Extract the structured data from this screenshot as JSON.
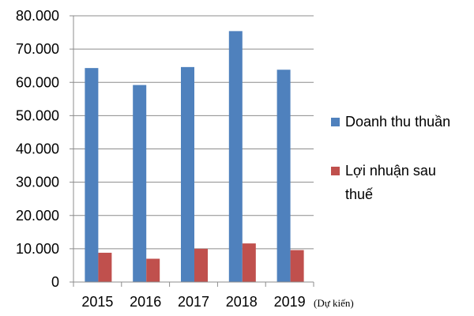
{
  "chart_data": {
    "type": "bar",
    "categories": [
      "2015",
      "2016",
      "2017",
      "2018",
      "2019"
    ],
    "category_note": "(Dự kiến)",
    "series": [
      {
        "name": "Doanh thu thuần",
        "values": [
          64300,
          59200,
          64600,
          75400,
          63800
        ],
        "color": "#4F81BD"
      },
      {
        "name": "Lợi nhuận sau thuế",
        "values": [
          8800,
          7000,
          10000,
          11600,
          9600
        ],
        "color": "#C0504D"
      }
    ],
    "y_ticks": [
      "0",
      "10.000",
      "20.000",
      "30.000",
      "40.000",
      "50.000",
      "60.000",
      "70.000",
      "80.000"
    ],
    "ylim": [
      0,
      80000
    ],
    "grid": true,
    "legend": {
      "position": "right",
      "items": [
        {
          "lines": [
            "Doanh thu thuần"
          ]
        },
        {
          "lines": [
            "Lợi nhuận sau",
            "thuế"
          ]
        }
      ]
    }
  }
}
